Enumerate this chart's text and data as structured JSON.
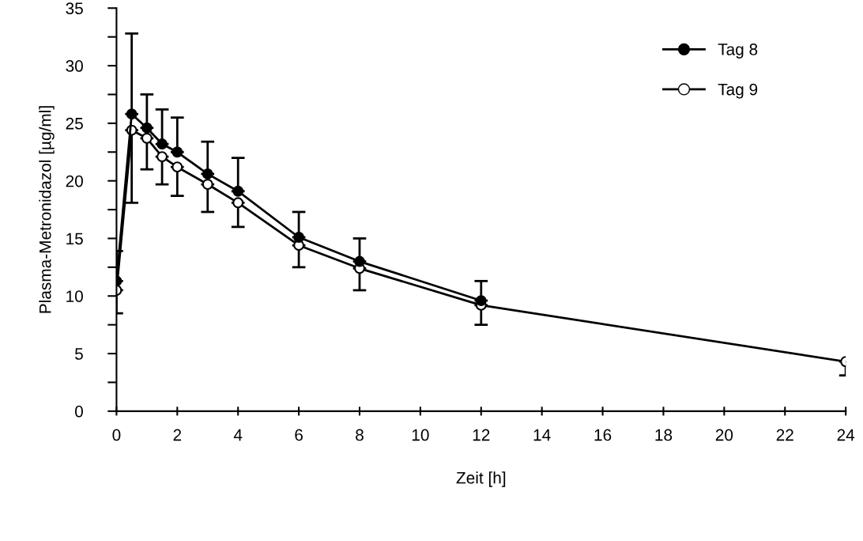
{
  "chart_data": {
    "type": "line",
    "xlabel": "Zeit [h]",
    "ylabel": "Plasma-Metronidazol [µg/ml]",
    "xlim": [
      0,
      24
    ],
    "xticks": [
      0,
      2,
      4,
      6,
      8,
      10,
      12,
      14,
      16,
      18,
      20,
      22,
      24
    ],
    "ylim": [
      0,
      35
    ],
    "yticks": [
      0,
      {
        "value": 2.5,
        "label": null
      },
      5,
      {
        "value": 7.5,
        "label": null
      },
      10,
      {
        "value": 12.5,
        "label": null
      },
      15,
      {
        "value": 17.5,
        "label": null
      },
      20,
      {
        "value": 22.5,
        "label": null
      },
      25,
      {
        "value": 27.5,
        "label": null
      },
      30,
      {
        "value": 32.5,
        "label": null
      },
      35
    ],
    "x": [
      0,
      0.5,
      1,
      1.5,
      2,
      3,
      4,
      6,
      8,
      12,
      24
    ],
    "marker": "circle",
    "line_style": "solid",
    "grid": false,
    "legend": "top right",
    "series": [
      {
        "name": "Tag 8",
        "color": "#000000",
        "values": [
          11.3,
          25.8,
          24.6,
          23.2,
          22.5,
          20.6,
          19.1,
          15.1,
          13.0,
          9.6,
          null
        ],
        "errors": [
          [
            11.3,
            13.9
          ],
          [
            25.8,
            32.8
          ],
          [
            24.6,
            27.5
          ],
          [
            23.2,
            26.2
          ],
          [
            22.5,
            25.5
          ],
          [
            20.6,
            23.4
          ],
          [
            19.1,
            22.0
          ],
          [
            15.1,
            17.3
          ],
          [
            13.0,
            15.0
          ],
          [
            9.6,
            11.3
          ],
          null
        ]
      },
      {
        "name": "Tag 9",
        "color": "#000000",
        "values": [
          10.5,
          24.4,
          23.7,
          22.1,
          21.2,
          19.7,
          18.1,
          14.4,
          12.4,
          9.2,
          4.3
        ],
        "errors": [
          [
            8.5,
            10.5
          ],
          [
            18.1,
            24.4
          ],
          [
            21.0,
            23.7
          ],
          [
            19.7,
            22.1
          ],
          [
            18.7,
            21.2
          ],
          [
            17.3,
            19.7
          ],
          [
            16.0,
            18.1
          ],
          [
            12.5,
            14.4
          ],
          [
            10.5,
            12.4
          ],
          [
            7.5,
            9.2
          ],
          [
            3.1,
            4.3
          ]
        ]
      }
    ]
  }
}
